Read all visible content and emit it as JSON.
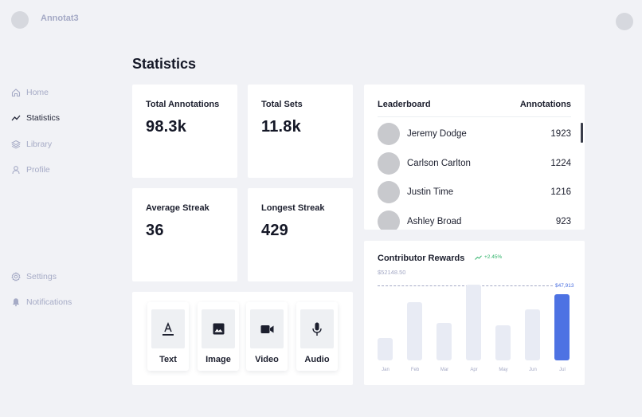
{
  "app": {
    "name": "Annotat3"
  },
  "sidebar": {
    "items": [
      {
        "label": "Home",
        "icon": "home-icon"
      },
      {
        "label": "Statistics",
        "icon": "trend-icon"
      },
      {
        "label": "Library",
        "icon": "layers-icon"
      },
      {
        "label": "Profile",
        "icon": "user-icon"
      },
      {
        "label": "Settings",
        "icon": "gear-icon"
      },
      {
        "label": "Notifications",
        "icon": "bell-icon"
      }
    ],
    "active": "Statistics"
  },
  "page": {
    "title": "Statistics"
  },
  "stats": [
    {
      "label": "Total Annotations",
      "value": "98.3k"
    },
    {
      "label": "Total Sets",
      "value": "11.8k"
    },
    {
      "label": "Average Streak",
      "value": "36"
    },
    {
      "label": "Longest Streak",
      "value": "429"
    }
  ],
  "media_types": [
    {
      "label": "Text",
      "icon": "text-icon"
    },
    {
      "label": "Image",
      "icon": "image-icon"
    },
    {
      "label": "Video",
      "icon": "video-icon"
    },
    {
      "label": "Audio",
      "icon": "microphone-icon"
    }
  ],
  "leaderboard": {
    "title": "Leaderboard",
    "column": "Annotations",
    "rows": [
      {
        "name": "Jeremy Dodge",
        "score": "1923"
      },
      {
        "name": "Carlson Carlton",
        "score": "1224"
      },
      {
        "name": "Justin Time",
        "score": "1216"
      },
      {
        "name": "Ashley Broad",
        "score": "923"
      }
    ]
  },
  "rewards": {
    "title": "Contributor Rewards",
    "trend": "+2.45%",
    "amount": "$52148.50",
    "max_label": "$47,913",
    "colors": {
      "bar": "#e8ebf4",
      "highlight": "#4d72e3",
      "trend": "#2fb36a"
    }
  },
  "chart_data": {
    "type": "bar",
    "title": "Contributor Rewards",
    "categories": [
      "Jan",
      "Feb",
      "Mar",
      "Apr",
      "May",
      "Jun",
      "Jul"
    ],
    "values": [
      0.29,
      0.77,
      0.49,
      1.0,
      0.46,
      0.67,
      0.87
    ],
    "highlight_index": 6,
    "xlabel": "",
    "ylabel": "",
    "reference_line": "$47,913"
  }
}
